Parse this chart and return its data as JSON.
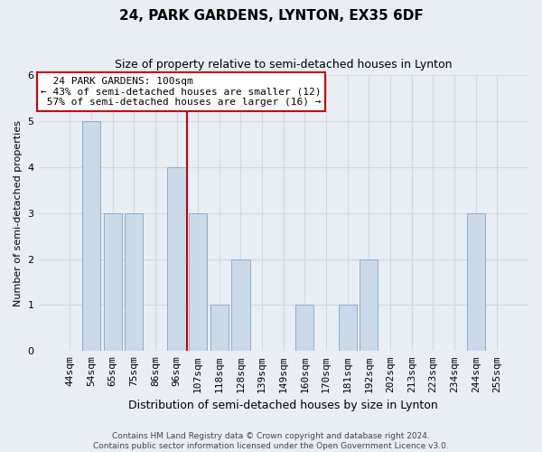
{
  "title": "24, PARK GARDENS, LYNTON, EX35 6DF",
  "subtitle": "Size of property relative to semi-detached houses in Lynton",
  "xlabel": "Distribution of semi-detached houses by size in Lynton",
  "ylabel": "Number of semi-detached properties",
  "footer1": "Contains HM Land Registry data © Crown copyright and database right 2024.",
  "footer2": "Contains public sector information licensed under the Open Government Licence v3.0.",
  "categories": [
    "44sqm",
    "54sqm",
    "65sqm",
    "75sqm",
    "86sqm",
    "96sqm",
    "107sqm",
    "118sqm",
    "128sqm",
    "139sqm",
    "149sqm",
    "160sqm",
    "170sqm",
    "181sqm",
    "192sqm",
    "202sqm",
    "213sqm",
    "223sqm",
    "234sqm",
    "244sqm",
    "255sqm"
  ],
  "values": [
    0,
    5,
    3,
    3,
    0,
    4,
    3,
    1,
    2,
    0,
    0,
    1,
    0,
    1,
    2,
    0,
    0,
    0,
    0,
    3,
    0
  ],
  "bar_color": "#ccd9e8",
  "bar_edge_color": "#8aafc8",
  "property_line_index": 6,
  "property_label": "24 PARK GARDENS: 100sqm",
  "smaller_pct": "43%",
  "smaller_count": 12,
  "larger_pct": "57%",
  "larger_count": 16,
  "ylim": [
    0,
    6.0
  ],
  "yticks": [
    0,
    1,
    2,
    3,
    4,
    5,
    6
  ],
  "annotation_box_color": "#ffffff",
  "annotation_box_edge": "#cc0000",
  "property_line_color": "#cc0000",
  "grid_color": "#d0d8e0",
  "background_color": "#e8eef4",
  "title_fontsize": 11,
  "subtitle_fontsize": 9,
  "ylabel_fontsize": 8,
  "xlabel_fontsize": 9,
  "tick_fontsize": 8,
  "ann_fontsize": 8
}
